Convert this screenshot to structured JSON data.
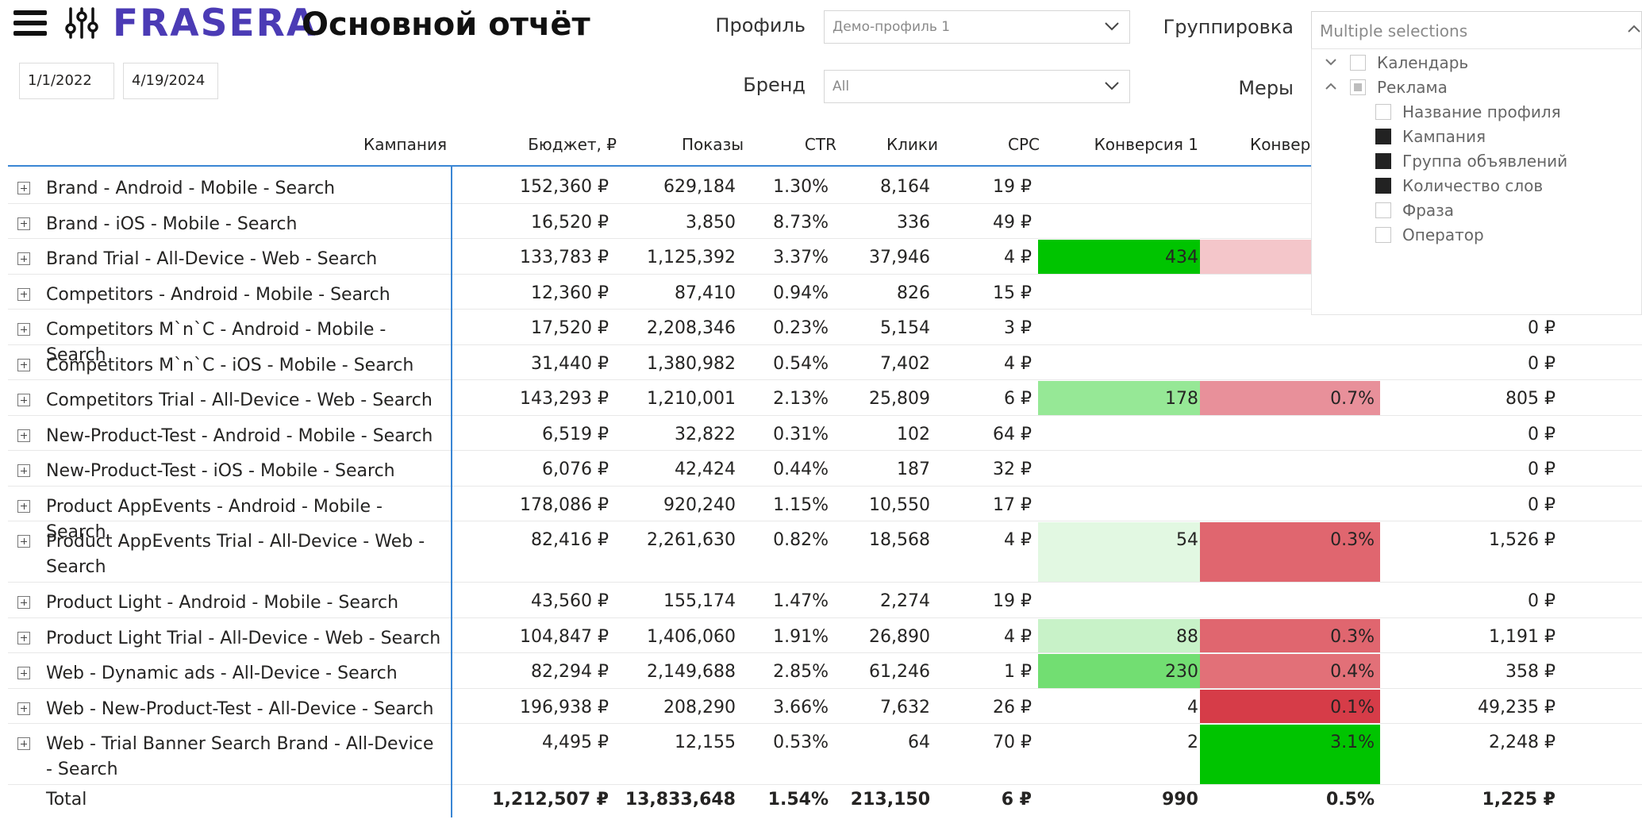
{
  "header": {
    "brand": "FRASERA",
    "title": "Основной отчёт",
    "date_from": "1/1/2022",
    "date_to": "4/19/2024"
  },
  "slicers": {
    "profile_label": "Профиль",
    "profile_value": "Демо-профиль 1",
    "brand_label": "Бренд",
    "brand_value": "All",
    "grouping_label": "Группировка",
    "grouping_value": "Multiple selections",
    "measures_label": "Меры"
  },
  "grouping_options": [
    {
      "label": "Календарь",
      "state": "unchecked"
    },
    {
      "label": "Реклама",
      "state": "partial"
    },
    {
      "label": "Название профиля",
      "state": "unchecked"
    },
    {
      "label": "Кампания",
      "state": "checked"
    },
    {
      "label": "Группа объявлений",
      "state": "checked"
    },
    {
      "label": "Количество слов",
      "state": "checked"
    },
    {
      "label": "Фраза",
      "state": "unchecked"
    },
    {
      "label": "Оператор",
      "state": "unchecked"
    }
  ],
  "table": {
    "columns": [
      "Кампания",
      "Бюджет, ₽",
      "Показы",
      "CTR",
      "Клики",
      "CPC",
      "Конверсия 1",
      "Конверсия"
    ],
    "rows": [
      {
        "campaign": "Brand - Android - Mobile - Search",
        "budget": "152,360 ₽",
        "impr": "629,184",
        "ctr": "1.30%",
        "clicks": "8,164",
        "cpc": "19 ₽",
        "conv1": "",
        "conv_rate": "",
        "cost_conv": "",
        "conv1_color": "",
        "rate_color": ""
      },
      {
        "campaign": "Brand - iOS - Mobile - Search",
        "budget": "16,520 ₽",
        "impr": "3,850",
        "ctr": "8.73%",
        "clicks": "336",
        "cpc": "49 ₽",
        "conv1": "",
        "conv_rate": "",
        "cost_conv": "",
        "conv1_color": "",
        "rate_color": ""
      },
      {
        "campaign": "Brand Trial - All-Device - Web - Search",
        "budget": "133,783 ₽",
        "impr": "1,125,392",
        "ctr": "3.37%",
        "clicks": "37,946",
        "cpc": "4 ₽",
        "conv1": "434",
        "conv_rate": "",
        "cost_conv": "",
        "conv1_color": "#00c400",
        "rate_color": "#f4c6ca"
      },
      {
        "campaign": "Competitors - Android - Mobile - Search",
        "budget": "12,360 ₽",
        "impr": "87,410",
        "ctr": "0.94%",
        "clicks": "826",
        "cpc": "15 ₽",
        "conv1": "",
        "conv_rate": "",
        "cost_conv": "",
        "conv1_color": "",
        "rate_color": ""
      },
      {
        "campaign": "Competitors M`n`C - Android - Mobile - Search",
        "budget": "17,520 ₽",
        "impr": "2,208,346",
        "ctr": "0.23%",
        "clicks": "5,154",
        "cpc": "3 ₽",
        "conv1": "",
        "conv_rate": "",
        "cost_conv": "0 ₽",
        "conv1_color": "",
        "rate_color": ""
      },
      {
        "campaign": "Competitors M`n`C - iOS - Mobile - Search",
        "budget": "31,440 ₽",
        "impr": "1,380,982",
        "ctr": "0.54%",
        "clicks": "7,402",
        "cpc": "4 ₽",
        "conv1": "",
        "conv_rate": "",
        "cost_conv": "0 ₽",
        "conv1_color": "",
        "rate_color": ""
      },
      {
        "campaign": "Competitors Trial - All-Device - Web - Search",
        "budget": "143,293 ₽",
        "impr": "1,210,001",
        "ctr": "2.13%",
        "clicks": "25,809",
        "cpc": "6 ₽",
        "conv1": "178",
        "conv_rate": "0.7%",
        "cost_conv": "805 ₽",
        "conv1_color": "#96e896",
        "rate_color": "#e8909a"
      },
      {
        "campaign": "New-Product-Test - Android - Mobile - Search",
        "budget": "6,519 ₽",
        "impr": "32,822",
        "ctr": "0.31%",
        "clicks": "102",
        "cpc": "64 ₽",
        "conv1": "",
        "conv_rate": "",
        "cost_conv": "0 ₽",
        "conv1_color": "",
        "rate_color": ""
      },
      {
        "campaign": "New-Product-Test - iOS - Mobile - Search",
        "budget": "6,076 ₽",
        "impr": "42,424",
        "ctr": "0.44%",
        "clicks": "187",
        "cpc": "32 ₽",
        "conv1": "",
        "conv_rate": "",
        "cost_conv": "0 ₽",
        "conv1_color": "",
        "rate_color": ""
      },
      {
        "campaign": "Product AppEvents - Android - Mobile - Search",
        "budget": "178,086 ₽",
        "impr": "920,240",
        "ctr": "1.15%",
        "clicks": "10,550",
        "cpc": "17 ₽",
        "conv1": "",
        "conv_rate": "",
        "cost_conv": "0 ₽",
        "conv1_color": "",
        "rate_color": ""
      },
      {
        "campaign": "Product AppEvents Trial - All-Device - Web - Search",
        "budget": "82,416 ₽",
        "impr": "2,261,630",
        "ctr": "0.82%",
        "clicks": "18,568",
        "cpc": "4 ₽",
        "conv1": "54",
        "conv_rate": "0.3%",
        "cost_conv": "1,526 ₽",
        "conv1_color": "#e2f8e2",
        "rate_color": "#e0666f"
      },
      {
        "campaign": "Product Light - Android - Mobile - Search",
        "budget": "43,560 ₽",
        "impr": "155,174",
        "ctr": "1.47%",
        "clicks": "2,274",
        "cpc": "19 ₽",
        "conv1": "",
        "conv_rate": "",
        "cost_conv": "0 ₽",
        "conv1_color": "",
        "rate_color": ""
      },
      {
        "campaign": "Product Light Trial - All-Device - Web - Search",
        "budget": "104,847 ₽",
        "impr": "1,406,060",
        "ctr": "1.91%",
        "clicks": "26,890",
        "cpc": "4 ₽",
        "conv1": "88",
        "conv_rate": "0.3%",
        "cost_conv": "1,191 ₽",
        "conv1_color": "#c8f2c8",
        "rate_color": "#e0666f"
      },
      {
        "campaign": "Web - Dynamic ads - All-Device - Search",
        "budget": "82,294 ₽",
        "impr": "2,149,688",
        "ctr": "2.85%",
        "clicks": "61,246",
        "cpc": "1 ₽",
        "conv1": "230",
        "conv_rate": "0.4%",
        "cost_conv": "358 ₽",
        "conv1_color": "#72de72",
        "rate_color": "#e27078"
      },
      {
        "campaign": "Web - New-Product-Test - All-Device - Search",
        "budget": "196,938 ₽",
        "impr": "208,290",
        "ctr": "3.66%",
        "clicks": "7,632",
        "cpc": "26 ₽",
        "conv1": "4",
        "conv_rate": "0.1%",
        "cost_conv": "49,235 ₽",
        "conv1_color": "",
        "rate_color": "#d63c48"
      },
      {
        "campaign": "Web - Trial Banner Search Brand - All-Device - Search",
        "budget": "4,495 ₽",
        "impr": "12,155",
        "ctr": "0.53%",
        "clicks": "64",
        "cpc": "70 ₽",
        "conv1": "2",
        "conv_rate": "3.1%",
        "cost_conv": "2,248 ₽",
        "conv1_color": "",
        "rate_color": "#00c400"
      }
    ],
    "total": {
      "label": "Total",
      "budget": "1,212,507 ₽",
      "impr": "13,833,648",
      "ctr": "1.54%",
      "clicks": "213,150",
      "cpc": "6 ₽",
      "conv1": "990",
      "conv_rate": "0.5%",
      "cost_conv": "1,225 ₽"
    }
  },
  "colors": {
    "brand": "#4b3bb5",
    "accent_line": "#3a86d4"
  }
}
